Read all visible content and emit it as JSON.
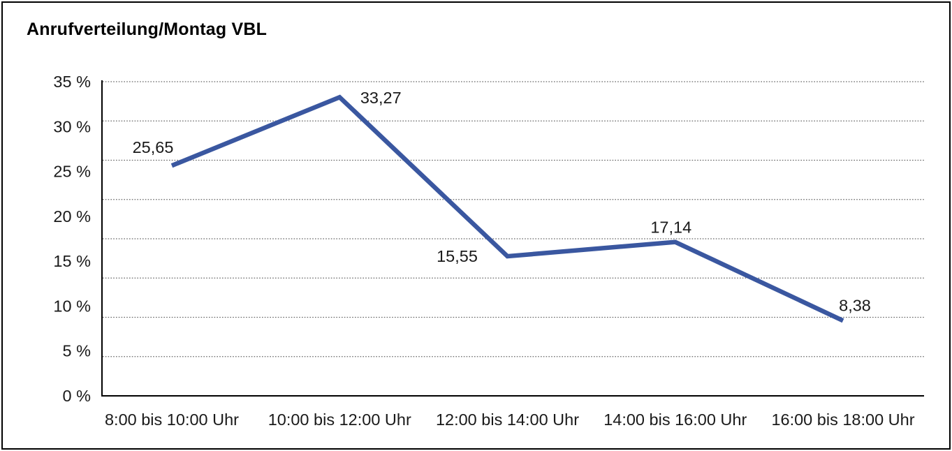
{
  "page": {
    "background_color": "#ffffff",
    "frame_color": "#000000"
  },
  "chart_data": {
    "type": "line",
    "title": "Anrufverteilung/Montag VBL",
    "categories": [
      "8:00 bis 10:00 Uhr",
      "10:00 bis 12:00 Uhr",
      "12:00 bis 14:00 Uhr",
      "14:00 bis 16:00 Uhr",
      "16:00 bis 18:00 Uhr"
    ],
    "values": [
      25.65,
      33.27,
      15.55,
      17.14,
      8.38
    ],
    "point_labels": [
      "25,65",
      "33,27",
      "15,55",
      "17,14",
      "8,38"
    ],
    "xlabel": "",
    "ylabel": "",
    "ylim": [
      0,
      35
    ],
    "y_tick_values": [
      0,
      5,
      10,
      15,
      20,
      25,
      30,
      35
    ],
    "y_tick_labels": [
      "0 %",
      "5 %",
      "10 %",
      "15 %",
      "20 %",
      "25 %",
      "30 %",
      "35 %"
    ],
    "grid": "horizontal-dotted",
    "grid_divisions": 8,
    "legend_position": "none",
    "line_color": "#3A57A0",
    "axis_color": "#000000",
    "gridline_color": "#666666",
    "label_color": "#1a1a1a"
  }
}
